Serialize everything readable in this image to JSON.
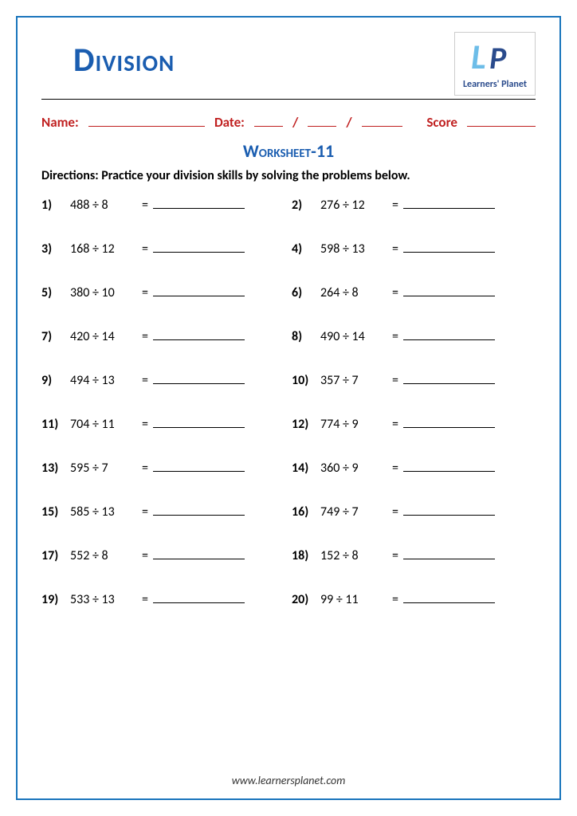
{
  "header": {
    "title": "Division",
    "logo_tag": "Learners' Planet"
  },
  "fields": {
    "name_label": "Name:",
    "date_label": "Date:",
    "score_label": "Score"
  },
  "subtitle": "Worksheet-11",
  "directions": "Directions: Practice your division skills by solving the problems below.",
  "problems": [
    {
      "num": "1)",
      "expr": "488 ÷ 8"
    },
    {
      "num": "2)",
      "expr": "276 ÷ 12"
    },
    {
      "num": "3)",
      "expr": "168 ÷ 12"
    },
    {
      "num": "4)",
      "expr": "598 ÷ 13"
    },
    {
      "num": "5)",
      "expr": "380 ÷ 10"
    },
    {
      "num": "6)",
      "expr": "264 ÷ 8"
    },
    {
      "num": "7)",
      "expr": "420 ÷ 14"
    },
    {
      "num": "8)",
      "expr": "490 ÷ 14"
    },
    {
      "num": "9)",
      "expr": "494 ÷ 13"
    },
    {
      "num": "10)",
      "expr": "357 ÷ 7"
    },
    {
      "num": "11)",
      "expr": "704 ÷ 11"
    },
    {
      "num": "12)",
      "expr": "774 ÷ 9"
    },
    {
      "num": "13)",
      "expr": "595 ÷ 7"
    },
    {
      "num": "14)",
      "expr": "360 ÷ 9"
    },
    {
      "num": "15)",
      "expr": "585 ÷ 13"
    },
    {
      "num": "16)",
      "expr": "749 ÷ 7"
    },
    {
      "num": "17)",
      "expr": "552 ÷ 8"
    },
    {
      "num": "18)",
      "expr": "152 ÷ 8"
    },
    {
      "num": "19)",
      "expr": "533 ÷ 13"
    },
    {
      "num": "20)",
      "expr": "99 ÷ 11"
    }
  ],
  "footer": "www.learnersplanet.com",
  "colors": {
    "border": "#1a75bc",
    "title": "#1a5db0",
    "field_label": "#c02020",
    "text": "#000000"
  }
}
